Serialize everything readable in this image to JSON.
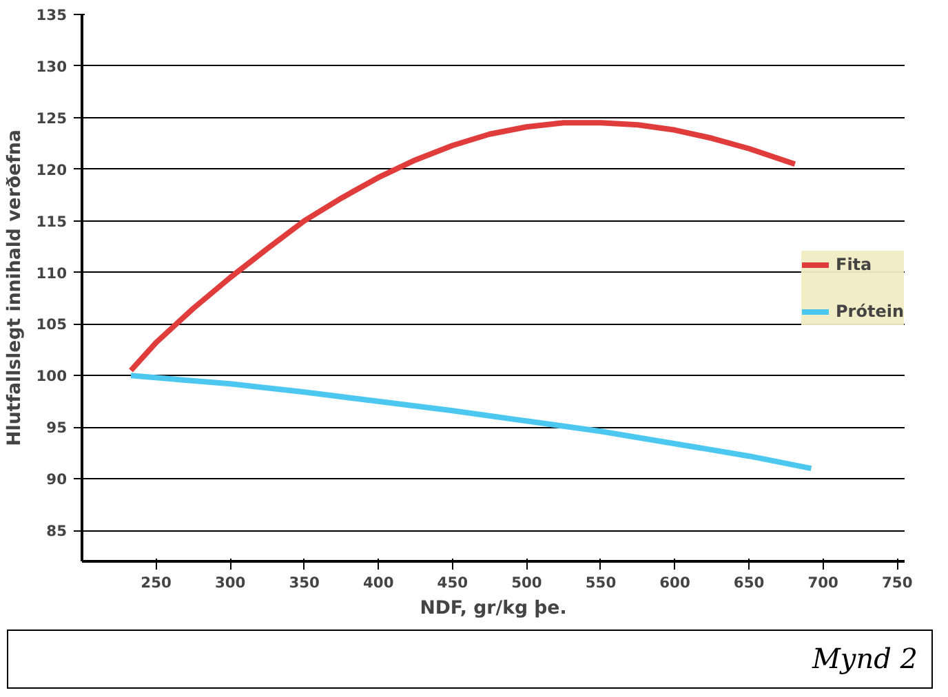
{
  "chart_data": {
    "type": "line",
    "xlabel": "NDF, gr/kg þe.",
    "ylabel": "Hlutfallslegt innihald verðefna",
    "xlim": [
      200,
      755
    ],
    "ylim": [
      82,
      135
    ],
    "xticks": [
      250,
      300,
      350,
      400,
      450,
      500,
      550,
      600,
      650,
      700,
      750
    ],
    "yticks": [
      85,
      90,
      95,
      100,
      105,
      110,
      115,
      120,
      125,
      130,
      135
    ],
    "grid": "y",
    "legend": "right",
    "line_style": "solid",
    "marker": "none",
    "series": [
      {
        "name": "Fita",
        "color": "#e03c3c",
        "x": [
          233,
          250,
          275,
          300,
          325,
          350,
          375,
          400,
          425,
          450,
          475,
          500,
          525,
          550,
          575,
          600,
          625,
          650,
          681
        ],
        "values": [
          100.5,
          103.2,
          106.5,
          109.5,
          112.3,
          115,
          117.2,
          119.2,
          120.9,
          122.3,
          123.4,
          124.1,
          124.5,
          124.5,
          124.3,
          123.8,
          123,
          122,
          120.5
        ]
      },
      {
        "name": "Prótein",
        "color": "#4cc8f0",
        "x": [
          233,
          300,
          350,
          400,
          450,
          500,
          550,
          600,
          650,
          692
        ],
        "values": [
          100,
          99.2,
          98.4,
          97.5,
          96.6,
          95.6,
          94.6,
          93.4,
          92.2,
          91
        ]
      }
    ],
    "annotations": [
      "Mynd 2"
    ]
  }
}
